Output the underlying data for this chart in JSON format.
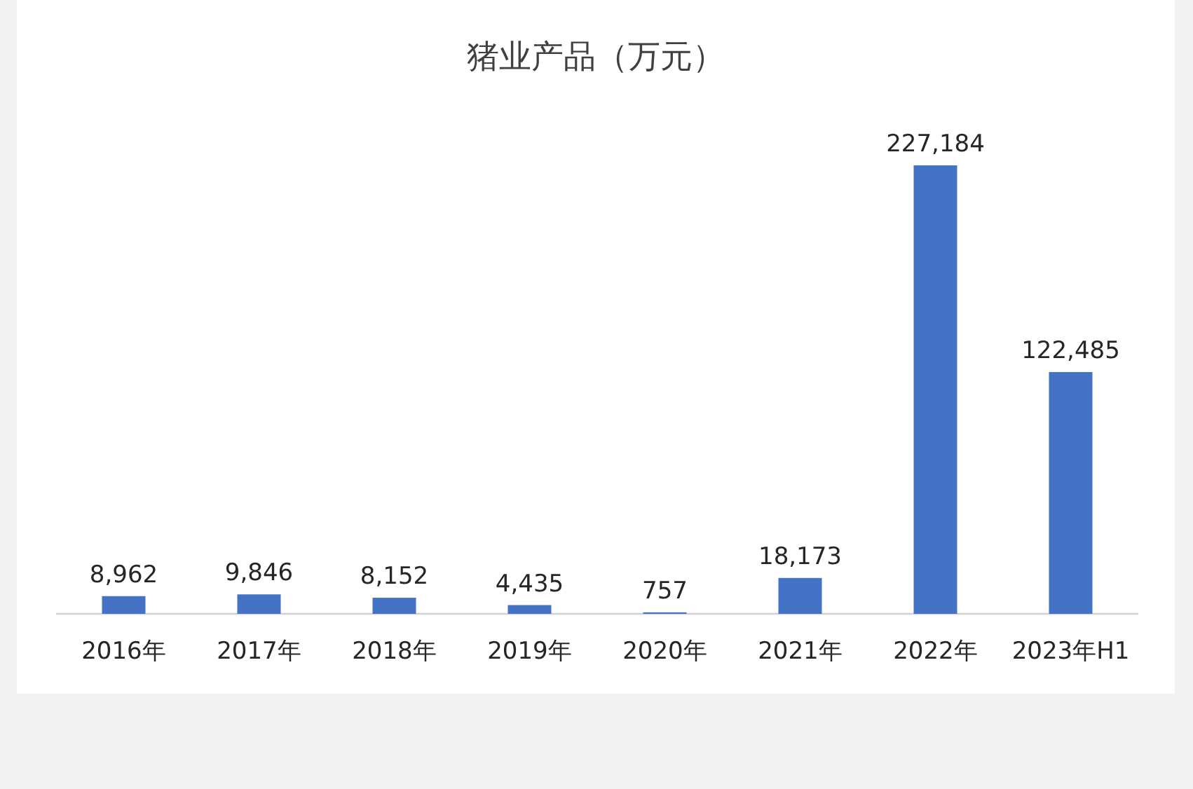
{
  "chart_data": {
    "type": "bar",
    "title": "猪业产品（万元）",
    "categories": [
      "2016年",
      "2017年",
      "2018年",
      "2019年",
      "2020年",
      "2021年",
      "2022年",
      "2023年H1"
    ],
    "values": [
      8962,
      9846,
      8152,
      4435,
      757,
      18173,
      227184,
      122485
    ],
    "value_labels": [
      "8,962",
      "9,846",
      "8,152",
      "4,435",
      "757",
      "18,173",
      "227,184",
      "122,485"
    ],
    "color": "#4472c4"
  }
}
